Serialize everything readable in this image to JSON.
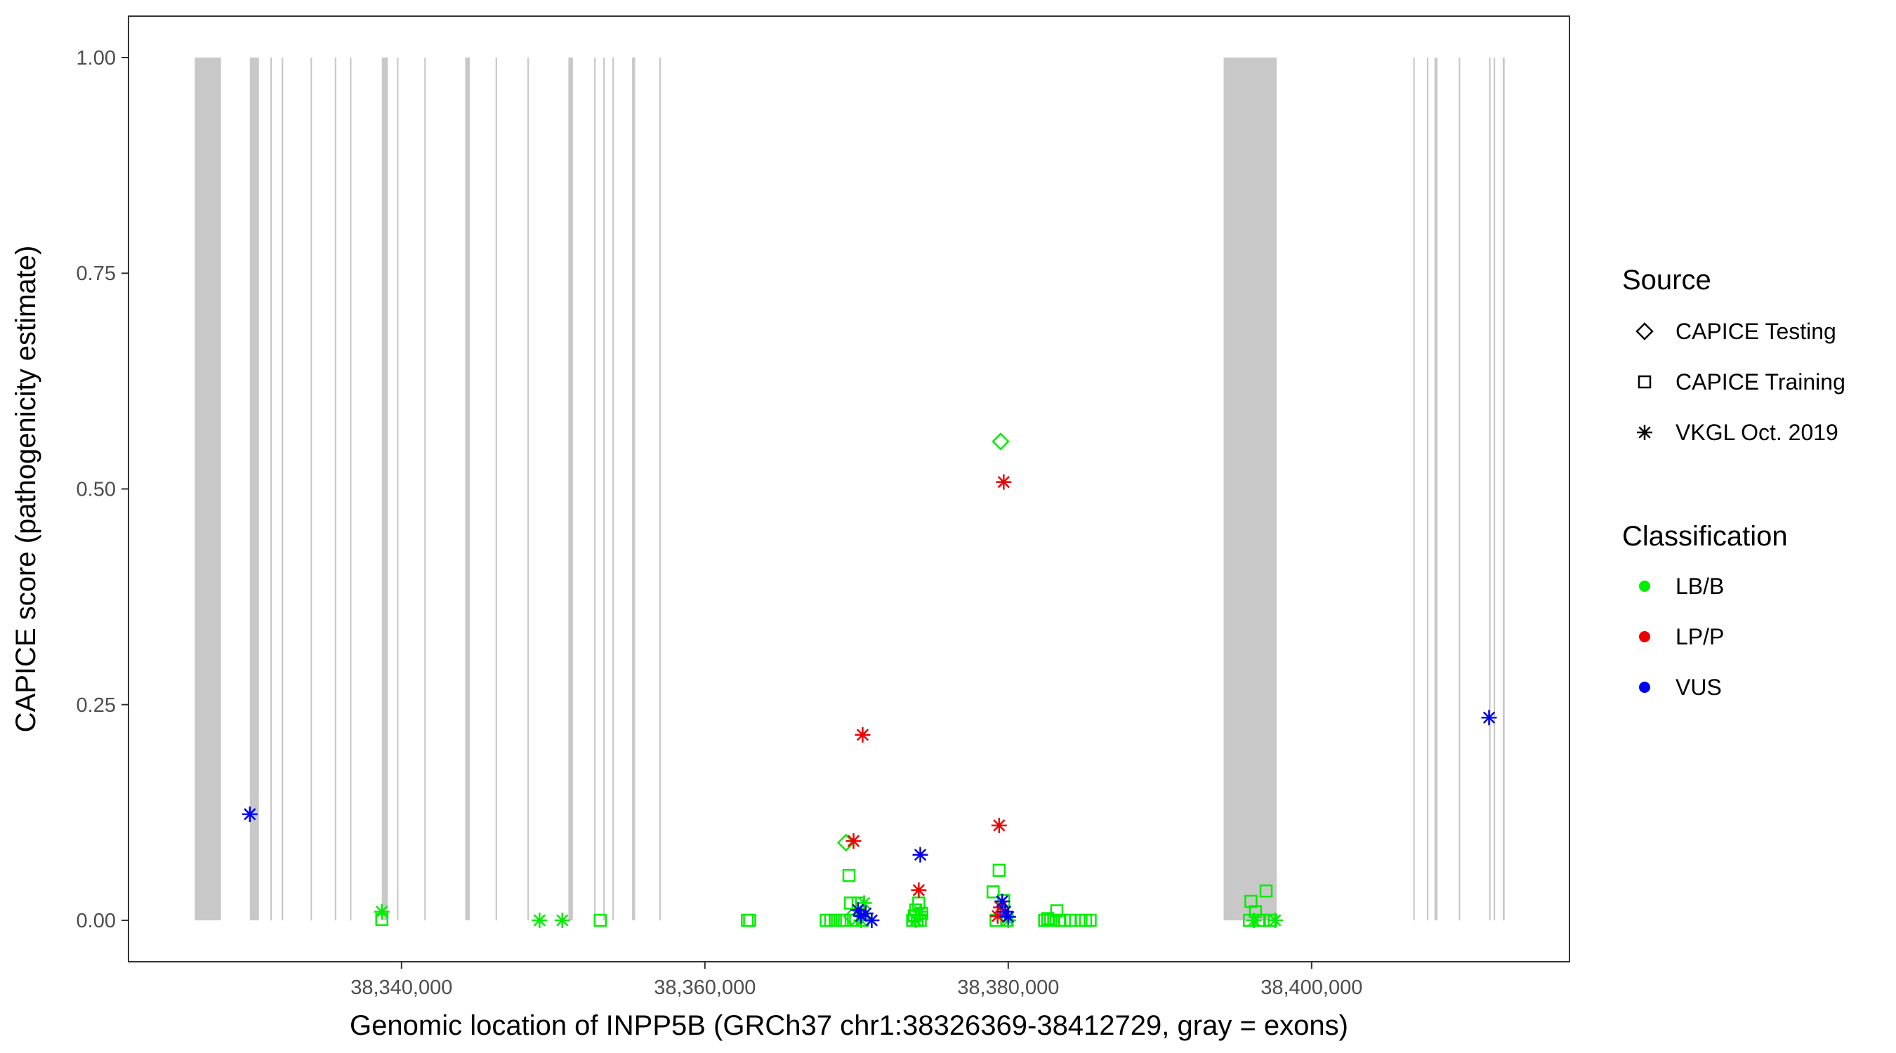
{
  "chart_data": {
    "type": "scatter",
    "xlabel": "Genomic location of INPP5B (GRCh37 chr1:38326369-38412729, gray = exons)",
    "ylabel": "CAPICE score (pathogenicity estimate)",
    "xlim": [
      38322000,
      38417000
    ],
    "ylim": [
      -0.048,
      1.048
    ],
    "x_ticks": [
      38340000,
      38360000,
      38380000,
      38400000
    ],
    "x_tick_labels": [
      "38,340,000",
      "38,360,000",
      "38,380,000",
      "38,400,000"
    ],
    "y_ticks": [
      0,
      0.25,
      0.5,
      0.75,
      1
    ],
    "y_tick_labels": [
      "0.00",
      "0.25",
      "0.50",
      "0.75",
      "1.00"
    ],
    "grid": false,
    "exon_color": "#c8c8c8",
    "exons": [
      [
        38326369,
        38328100
      ],
      [
        38330000,
        38330600
      ],
      [
        38331350,
        38331450
      ],
      [
        38332100,
        38332200
      ],
      [
        38334000,
        38334100
      ],
      [
        38335600,
        38335700
      ],
      [
        38336600,
        38336700
      ],
      [
        38338700,
        38339100
      ],
      [
        38339700,
        38339800
      ],
      [
        38341500,
        38341600
      ],
      [
        38344200,
        38344500
      ],
      [
        38346200,
        38346300
      ],
      [
        38348300,
        38348400
      ],
      [
        38351000,
        38351300
      ],
      [
        38352700,
        38352800
      ],
      [
        38353300,
        38353400
      ],
      [
        38353900,
        38354000
      ],
      [
        38355200,
        38355400
      ],
      [
        38357000,
        38357100
      ],
      [
        38394200,
        38397700
      ],
      [
        38406700,
        38406800
      ],
      [
        38407600,
        38407700
      ],
      [
        38408100,
        38408300
      ],
      [
        38409700,
        38409800
      ],
      [
        38411700,
        38411800
      ],
      [
        38412000,
        38412100
      ],
      [
        38412600,
        38412729
      ]
    ],
    "legends": [
      {
        "title": "Source",
        "entries": [
          {
            "label": "CAPICE Testing",
            "shape": "diamond"
          },
          {
            "label": "CAPICE Training",
            "shape": "square"
          },
          {
            "label": "VKGL Oct. 2019",
            "shape": "asterisk"
          }
        ]
      },
      {
        "title": "Classification",
        "entries": [
          {
            "label": "LB/B",
            "color": "#00ee00"
          },
          {
            "label": "LP/P",
            "color": "#ee0000"
          },
          {
            "label": "VUS",
            "color": "#0000ee"
          }
        ]
      }
    ],
    "legend_position": "right",
    "series": [
      {
        "source": "CAPICE Testing",
        "classification": "LB/B",
        "shape": "diamond",
        "color": "#00ee00",
        "points": [
          [
            38379500,
            0.555
          ],
          [
            38369300,
            0.09
          ],
          [
            38369700,
            0.004
          ]
        ]
      },
      {
        "source": "CAPICE Training",
        "classification": "LB/B",
        "shape": "square",
        "color": "#00ee00",
        "points": [
          [
            38338700,
            0.001
          ],
          [
            38353100,
            0.0
          ],
          [
            38362800,
            0.0
          ],
          [
            38362950,
            0.0
          ],
          [
            38368000,
            0.0
          ],
          [
            38368300,
            0.0
          ],
          [
            38368600,
            0.0
          ],
          [
            38368900,
            0.0
          ],
          [
            38369200,
            0.0
          ],
          [
            38369500,
            0.052
          ],
          [
            38369600,
            0.02
          ],
          [
            38369800,
            0.0
          ],
          [
            38370100,
            0.02
          ],
          [
            38370400,
            0.0
          ],
          [
            38373700,
            0.0
          ],
          [
            38373800,
            0.005
          ],
          [
            38373900,
            0.012
          ],
          [
            38374000,
            0.0
          ],
          [
            38374100,
            0.02
          ],
          [
            38374200,
            0.0
          ],
          [
            38374300,
            0.008
          ],
          [
            38379000,
            0.033
          ],
          [
            38379200,
            0.0
          ],
          [
            38379400,
            0.058
          ],
          [
            38379700,
            0.023
          ],
          [
            38379900,
            0.0
          ],
          [
            38382400,
            0.0
          ],
          [
            38382600,
            0.002
          ],
          [
            38382800,
            0.0
          ],
          [
            38383000,
            0.0
          ],
          [
            38383200,
            0.011
          ],
          [
            38383400,
            0.0
          ],
          [
            38383700,
            0.0
          ],
          [
            38384100,
            0.0
          ],
          [
            38384800,
            0.0
          ],
          [
            38385100,
            0.0
          ],
          [
            38385400,
            0.0
          ],
          [
            38395900,
            0.0
          ],
          [
            38396000,
            0.022
          ],
          [
            38396300,
            0.01
          ],
          [
            38396500,
            0.0
          ],
          [
            38396800,
            0.0
          ],
          [
            38397000,
            0.034
          ],
          [
            38397300,
            0.0
          ]
        ]
      },
      {
        "source": "VKGL Oct. 2019",
        "classification": "LB/B",
        "shape": "asterisk",
        "color": "#00ee00",
        "points": [
          [
            38338700,
            0.01
          ],
          [
            38349100,
            0.0
          ],
          [
            38350600,
            0.0
          ],
          [
            38370300,
            0.0
          ],
          [
            38370500,
            0.02
          ],
          [
            38373900,
            0.0
          ],
          [
            38374200,
            0.01
          ],
          [
            38380000,
            0.0
          ],
          [
            38396200,
            0.0
          ],
          [
            38397600,
            0.0
          ]
        ]
      },
      {
        "source": "VKGL Oct. 2019",
        "classification": "LP/P",
        "shape": "asterisk",
        "color": "#ee0000",
        "points": [
          [
            38379700,
            0.508
          ],
          [
            38370400,
            0.215
          ],
          [
            38379400,
            0.11
          ],
          [
            38369800,
            0.092
          ],
          [
            38374100,
            0.035
          ],
          [
            38379500,
            0.015
          ],
          [
            38379300,
            0.005
          ]
        ]
      },
      {
        "source": "VKGL Oct. 2019",
        "classification": "VUS",
        "shape": "asterisk",
        "color": "#0000ee",
        "points": [
          [
            38330000,
            0.123
          ],
          [
            38411700,
            0.235
          ],
          [
            38374200,
            0.076
          ],
          [
            38379600,
            0.022
          ],
          [
            38379800,
            0.01
          ],
          [
            38380000,
            0.004
          ],
          [
            38370100,
            0.012
          ],
          [
            38370300,
            0.005
          ],
          [
            38370600,
            0.008
          ],
          [
            38371000,
            0.0
          ]
        ]
      }
    ]
  }
}
